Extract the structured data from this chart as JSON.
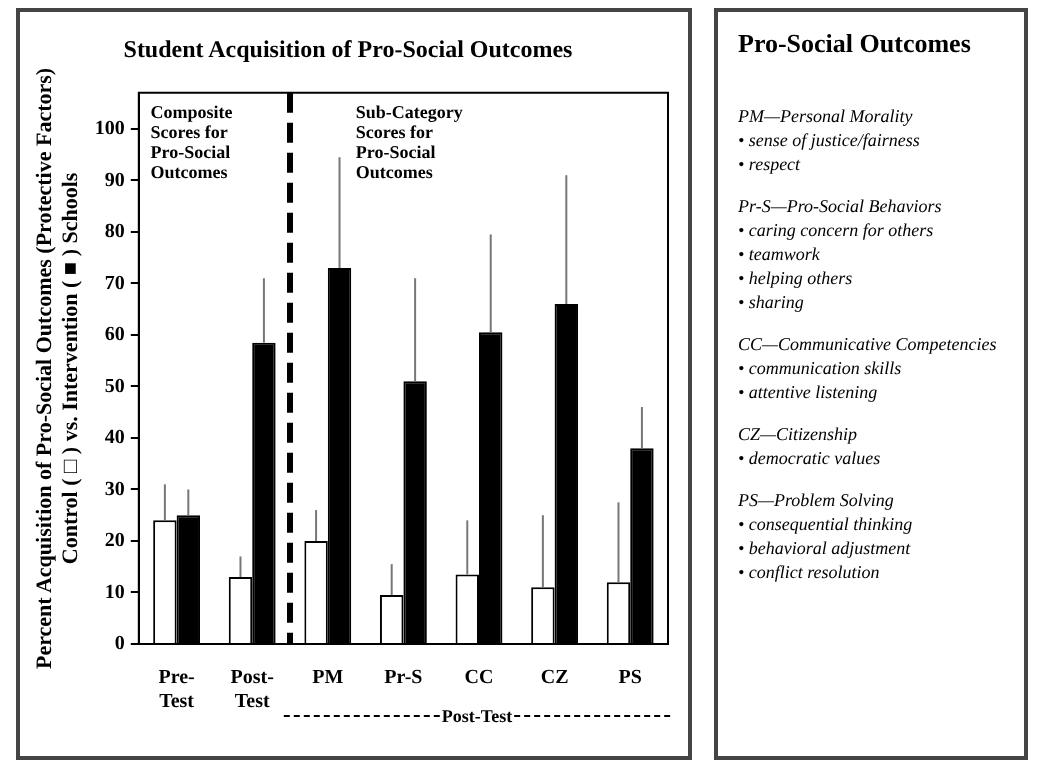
{
  "chart_data": [
    {
      "type": "bar",
      "title": "Student Acquisition of Pro-Social Outcomes",
      "ylabel": "Percent Acquisition of Pro-Social Outcomes (Protective Factors)\nControl ( □ ) vs. Intervention ( ■ ) Schools",
      "categories": [
        "Pre-\nTest",
        "Post-\nTest",
        "PM",
        "Pr-S",
        "CC",
        "CZ",
        "PS"
      ],
      "series": [
        {
          "color": "#ffffff",
          "values": [
            24,
            13,
            20,
            9.5,
            13.5,
            11,
            12
          ],
          "errors": [
            [
              24,
              31
            ],
            [
              13,
              17
            ],
            [
              20,
              26
            ],
            [
              9.5,
              15.5
            ],
            [
              13.5,
              24
            ],
            [
              11,
              25
            ],
            [
              12,
              27.5
            ]
          ]
        },
        {
          "color": "#000000",
          "values": [
            25,
            58.5,
            73,
            51,
            60.5,
            66,
            38
          ],
          "errors": [
            [
              25,
              30
            ],
            [
              58.5,
              71
            ],
            [
              73,
              94.5
            ],
            [
              51,
              71
            ],
            [
              60.5,
              79.5
            ],
            [
              66,
              91
            ],
            [
              38,
              46
            ]
          ]
        }
      ],
      "ylim": [
        0,
        107
      ],
      "yticks": [
        0,
        10,
        20,
        30,
        40,
        50,
        60,
        70,
        80,
        90,
        100
      ],
      "grid": false,
      "legend": false,
      "annotations": [
        "Composite\nScores for\nPro-Social\nOutcomes",
        "Sub-Category\nScores for\nPro-Social\nOutcomes",
        "Post-Test"
      ]
    },
    {
      "type": "other",
      "title": "Pro-Social Outcomes",
      "annotations": [
        "PM—Personal Morality\n• sense of justice/fairness\n• respect",
        "Pr-S—Pro-Social Behaviors\n• caring concern for others\n• teamwork\n• helping others\n• sharing",
        "CC—Communicative Competencies\n• communication skills\n• attentive listening",
        "CZ—Citizenship\n• democratic values",
        "PS—Problem Solving\n• consequential thinking\n• behavioral adjustment\n• conflict resolution"
      ]
    }
  ]
}
